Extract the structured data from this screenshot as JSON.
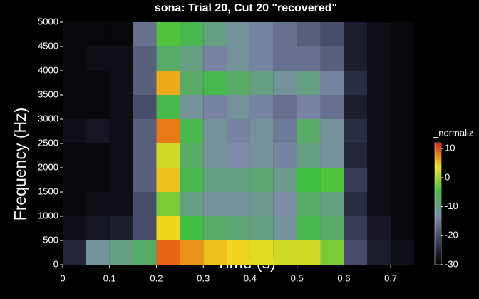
{
  "chart_data": {
    "type": "heatmap",
    "title": "sona: Trial 20, Cut 20 \"recovered\"",
    "x_label": "Time (s)",
    "y_label": "Frequency (Hz)",
    "colorbar_label": "_normaliz",
    "x_edges": [
      0,
      0.05,
      0.1,
      0.15,
      0.2,
      0.25,
      0.3,
      0.35,
      0.4,
      0.45,
      0.5,
      0.55,
      0.6,
      0.65,
      0.7,
      0.75
    ],
    "y_edges": [
      0,
      500,
      1000,
      1500,
      2000,
      2500,
      3000,
      3500,
      4000,
      4500,
      5000
    ],
    "z": [
      [
        -25,
        -12,
        -10,
        -8,
        9,
        7,
        5,
        4,
        3,
        2,
        2,
        -2,
        -20,
        -26,
        -28
      ],
      [
        -28,
        -27,
        -26,
        -20,
        4,
        -5,
        -8,
        -9,
        -10,
        -12,
        -6,
        -8,
        -22,
        -27,
        -29
      ],
      [
        -29,
        -28,
        -28,
        -20,
        -2,
        -10,
        -12,
        -12,
        -11,
        -13,
        -8,
        -10,
        -24,
        -28,
        -29
      ],
      [
        -29,
        -29,
        -28,
        -18,
        5,
        -6,
        -10,
        -10,
        -9,
        -11,
        -5,
        -4,
        -22,
        -28,
        -29
      ],
      [
        -29,
        -29,
        -28,
        -18,
        2,
        -8,
        -12,
        -13,
        -12,
        -14,
        -10,
        -12,
        -25,
        -28,
        -29
      ],
      [
        -28,
        -27,
        -28,
        -18,
        8,
        -6,
        -12,
        -14,
        -12,
        -15,
        -8,
        -12,
        -24,
        -28,
        -29
      ],
      [
        -29,
        -29,
        -28,
        -20,
        -6,
        -12,
        -14,
        -12,
        -14,
        -16,
        -14,
        -16,
        -26,
        -28,
        -29
      ],
      [
        -29,
        -29,
        -28,
        -18,
        6,
        -8,
        -6,
        -8,
        -10,
        -12,
        -10,
        -14,
        -24,
        -28,
        -29
      ],
      [
        -29,
        -28,
        -28,
        -18,
        -8,
        -10,
        -14,
        -12,
        -14,
        -16,
        -16,
        -18,
        -26,
        -28,
        -29
      ],
      [
        -29,
        -29,
        -29,
        -16,
        -4,
        -6,
        -10,
        -12,
        -14,
        -16,
        -18,
        -20,
        -26,
        -28,
        -29
      ]
    ],
    "xlim": [
      0,
      0.75
    ],
    "ylim": [
      0,
      5000
    ],
    "xticks": [
      0,
      0.1,
      0.2,
      0.3,
      0.4,
      0.5,
      0.6,
      0.7
    ],
    "yticks": [
      0,
      500,
      1000,
      1500,
      2000,
      2500,
      3000,
      3500,
      4000,
      4500,
      5000
    ],
    "clim": [
      -30,
      12
    ],
    "cticks": [
      -30,
      -20,
      -10,
      0,
      10
    ],
    "colormap": [
      "#000000",
      "#3a3f5c",
      "#7d8aa8",
      "#3fbf3f",
      "#f0e020",
      "#e02010"
    ]
  }
}
